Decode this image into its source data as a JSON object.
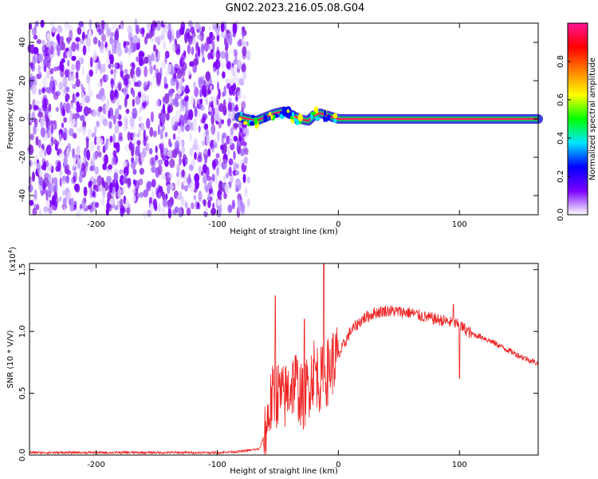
{
  "title": "GN02.2023.216.05.08.G04",
  "colorbar": {
    "label": "Normalized spectral amplitude",
    "ticks": [
      "0.0",
      "0.2",
      "0.4",
      "0.6",
      "0.8"
    ],
    "colors": [
      "#ffffff",
      "#7b00ff",
      "#0000ff",
      "#00e5ff",
      "#00ff00",
      "#ffff00",
      "#ff8000",
      "#ff0000",
      "#ff1493"
    ]
  },
  "spectrogram": {
    "xlabel": "Height of straight line (km)",
    "ylabel": "Frequency (Hz)",
    "xticks": [
      "-200",
      "-100",
      "0",
      "100"
    ],
    "yticks": [
      "40",
      "20",
      "0",
      "-20",
      "-40"
    ]
  },
  "snr": {
    "xlabel": "Height of straight line (km)",
    "ylabel": "SNR (10 * V/V)",
    "exponent": "(x10",
    "exponent_power": "4",
    "exponent_close": ")",
    "xticks": [
      "-200",
      "-100",
      "0",
      "100"
    ],
    "yticks": [
      "0.0",
      "0.5",
      "1.0",
      "1.5"
    ]
  },
  "chart_data": [
    {
      "type": "heatmap",
      "title": "GN02.2023.216.05.08.G04",
      "xlabel": "Height of straight line (km)",
      "ylabel": "Frequency (Hz)",
      "xlim": [
        -255,
        165
      ],
      "ylim": [
        -50,
        50
      ],
      "colorbar_label": "Normalized spectral amplitude",
      "colorbar_range": [
        0,
        1
      ],
      "noise_region_x": [
        -255,
        -78
      ],
      "noise_amplitude": 0.15,
      "signal_line": {
        "x": [
          -82,
          -75,
          -68,
          -60,
          -52,
          -45,
          -38,
          -32,
          -25,
          -20,
          -15,
          -10,
          -5,
          0,
          20,
          60,
          90,
          165
        ],
        "frequency": [
          1,
          0,
          -1,
          1,
          3,
          4,
          2,
          0,
          -1,
          2,
          3,
          2,
          1,
          0,
          0,
          0,
          0,
          0
        ],
        "amplitude": [
          0.25,
          0.35,
          0.4,
          0.45,
          0.5,
          0.55,
          0.6,
          0.62,
          0.65,
          0.7,
          0.72,
          0.75,
          0.8,
          0.9,
          0.95,
          0.95,
          0.95,
          0.95
        ]
      },
      "grid": false
    },
    {
      "type": "line",
      "xlabel": "Height of straight line (km)",
      "ylabel": "SNR (10 * V/V)",
      "y_scale_exponent": 4,
      "xlim": [
        -255,
        165
      ],
      "ylim": [
        0,
        1.55
      ],
      "color": "#ee2222",
      "x": [
        -255,
        -200,
        -150,
        -100,
        -80,
        -65,
        -60,
        -55,
        -50,
        -45,
        -40,
        -35,
        -30,
        -25,
        -20,
        -15,
        -10,
        -5,
        0,
        5,
        10,
        20,
        30,
        40,
        50,
        60,
        70,
        80,
        90,
        100,
        110,
        120,
        130,
        140,
        150,
        165
      ],
      "y": [
        0.02,
        0.02,
        0.02,
        0.02,
        0.03,
        0.05,
        0.2,
        0.45,
        0.5,
        0.45,
        0.55,
        0.6,
        0.45,
        0.55,
        0.7,
        0.6,
        0.65,
        0.75,
        0.8,
        0.9,
        1.0,
        1.1,
        1.15,
        1.17,
        1.16,
        1.15,
        1.12,
        1.1,
        1.08,
        1.05,
        0.98,
        0.95,
        0.9,
        0.85,
        0.8,
        0.74
      ],
      "spikes": [
        {
          "x": -52,
          "y": 1.29
        },
        {
          "x": -28,
          "y": 1.1
        },
        {
          "x": -12,
          "y": 1.55
        },
        {
          "x": 95,
          "y": 1.22
        },
        {
          "x": 100,
          "y": 0.62
        }
      ],
      "grid": false
    }
  ]
}
